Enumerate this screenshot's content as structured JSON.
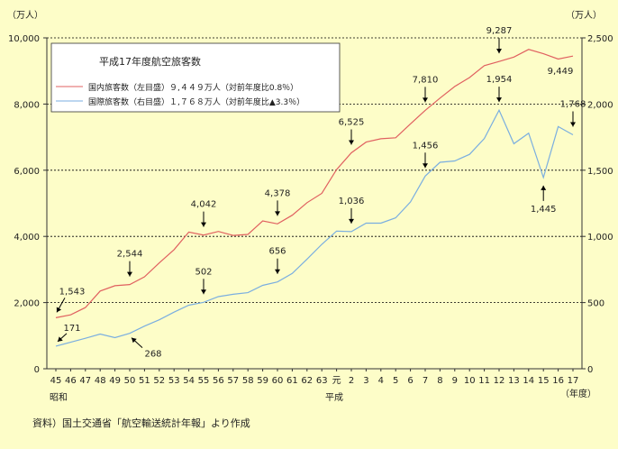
{
  "source_note": "資料）国土交通省「航空輸送統計年報」より作成",
  "colors": {
    "background": "#fdfdc8",
    "domestic": "#e06060",
    "international": "#7aaee0",
    "axis": "#333333"
  },
  "chart_data": {
    "type": "line",
    "title": "平成17年度航空旅客数",
    "y_left": {
      "unit": "（万人）",
      "range": [
        0,
        10000
      ],
      "ticks": [
        "0",
        "2,000",
        "4,000",
        "6,000",
        "8,000",
        "10,000"
      ]
    },
    "y_right": {
      "unit": "（万人）",
      "range": [
        0,
        2500
      ],
      "ticks": [
        "0",
        "500",
        "1,000",
        "1,500",
        "2,000",
        "2,500"
      ]
    },
    "x_label": "（年度）",
    "era_labels": {
      "showa": "昭和",
      "heisei": "平成"
    },
    "x": [
      "45",
      "46",
      "47",
      "48",
      "49",
      "50",
      "51",
      "52",
      "53",
      "54",
      "55",
      "56",
      "57",
      "58",
      "59",
      "60",
      "61",
      "62",
      "63",
      "元",
      "2",
      "3",
      "4",
      "5",
      "6",
      "7",
      "8",
      "9",
      "10",
      "11",
      "12",
      "13",
      "14",
      "15",
      "16",
      "17"
    ],
    "series": [
      {
        "name": "domestic",
        "legend": "国内旅客数（左目盛）９,４４９万人（対前年度比0.8％）",
        "axis": "left",
        "values": [
          1543,
          1630,
          1850,
          2350,
          2510,
          2544,
          2780,
          3200,
          3600,
          4130,
          4042,
          4150,
          4030,
          4060,
          4470,
          4378,
          4640,
          5020,
          5300,
          6020,
          6525,
          6850,
          6950,
          6980,
          7400,
          7810,
          8180,
          8530,
          8800,
          9160,
          9287,
          9420,
          9650,
          9520,
          9360,
          9449
        ]
      },
      {
        "name": "international",
        "legend": "国際旅客数（右目盛）１,７６８万人（対前年度比▲3.3％）",
        "axis": "right",
        "values": [
          171,
          200,
          230,
          262,
          235,
          268,
          322,
          370,
          428,
          480,
          502,
          545,
          563,
          575,
          630,
          656,
          720,
          828,
          940,
          1040,
          1036,
          1100,
          1100,
          1140,
          1260,
          1456,
          1560,
          1570,
          1620,
          1740,
          1954,
          1700,
          1780,
          1445,
          1830,
          1768
        ]
      }
    ],
    "annotations": [
      {
        "series": "domestic",
        "index": 0,
        "label": "1,543",
        "dir": "below"
      },
      {
        "series": "domestic",
        "index": 5,
        "label": "2,544",
        "dir": "above"
      },
      {
        "series": "domestic",
        "index": 10,
        "label": "4,042",
        "dir": "above"
      },
      {
        "series": "domestic",
        "index": 15,
        "label": "4,378",
        "dir": "above"
      },
      {
        "series": "domestic",
        "index": 20,
        "label": "6,525",
        "dir": "above"
      },
      {
        "series": "domestic",
        "index": 25,
        "label": "7,810",
        "dir": "above"
      },
      {
        "series": "domestic",
        "index": 30,
        "label": "9,287",
        "dir": "above"
      },
      {
        "series": "domestic",
        "index": 35,
        "label": "9,449",
        "dir": "below"
      },
      {
        "series": "international",
        "index": 0,
        "label": "171",
        "dir": "above"
      },
      {
        "series": "international",
        "index": 5,
        "label": "268",
        "dir": "below"
      },
      {
        "series": "international",
        "index": 10,
        "label": "502",
        "dir": "above"
      },
      {
        "series": "international",
        "index": 15,
        "label": "656",
        "dir": "above"
      },
      {
        "series": "international",
        "index": 20,
        "label": "1,036",
        "dir": "above"
      },
      {
        "series": "international",
        "index": 25,
        "label": "1,456",
        "dir": "above"
      },
      {
        "series": "international",
        "index": 30,
        "label": "1,954",
        "dir": "above"
      },
      {
        "series": "international",
        "index": 33,
        "label": "1,445",
        "dir": "below"
      },
      {
        "series": "international",
        "index": 35,
        "label": "1,768",
        "dir": "above"
      }
    ]
  }
}
